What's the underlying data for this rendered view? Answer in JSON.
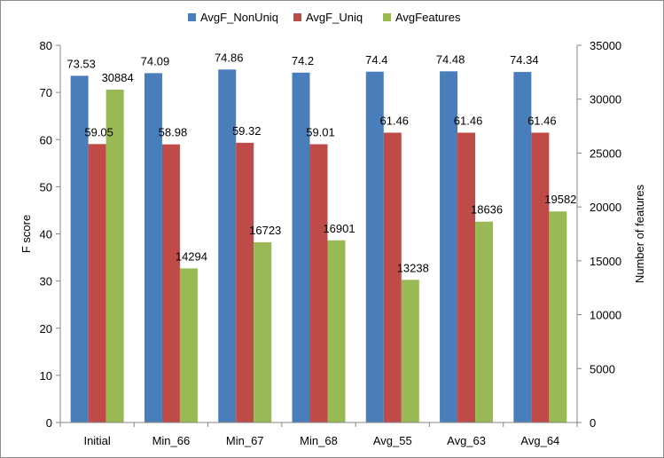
{
  "chart_data": {
    "type": "bar",
    "title": "",
    "categories": [
      "Initial",
      "Min_66",
      "Min_67",
      "Min_68",
      "Avg_55",
      "Avg_63",
      "Avg_64"
    ],
    "series": [
      {
        "name": "AvgF_NonUniq",
        "axis": "left",
        "color": "#4a7ebb",
        "values": [
          73.53,
          74.09,
          74.86,
          74.2,
          74.4,
          74.48,
          74.34
        ],
        "labels": [
          "73.53",
          "74.09",
          "74.86",
          "74.2",
          "74.4",
          "74.48",
          "74.34"
        ]
      },
      {
        "name": "AvgF_Uniq",
        "axis": "left",
        "color": "#be4b48",
        "values": [
          59.05,
          58.98,
          59.32,
          59.01,
          61.46,
          61.46,
          61.46
        ],
        "labels": [
          "59.05",
          "58.98",
          "59.32",
          "59.01",
          "61.46",
          "61.46",
          "61.46"
        ]
      },
      {
        "name": "AvgFeatures",
        "axis": "right",
        "color": "#98b954",
        "values": [
          30884,
          14294,
          16723,
          16901,
          13238,
          18636,
          19582
        ],
        "labels": [
          "30884",
          "14294",
          "16723",
          "16901",
          "13238",
          "18636",
          "19582"
        ]
      }
    ],
    "ylabel": "F score",
    "y2label": "Number of features",
    "ylim": [
      0,
      80
    ],
    "y2lim": [
      0,
      35000
    ],
    "yticks": [
      "0",
      "10",
      "20",
      "30",
      "40",
      "50",
      "60",
      "70",
      "80"
    ],
    "y2ticks": [
      "0",
      "5000",
      "10000",
      "15000",
      "20000",
      "25000",
      "30000",
      "35000"
    ],
    "grid": false,
    "legend": "top"
  }
}
